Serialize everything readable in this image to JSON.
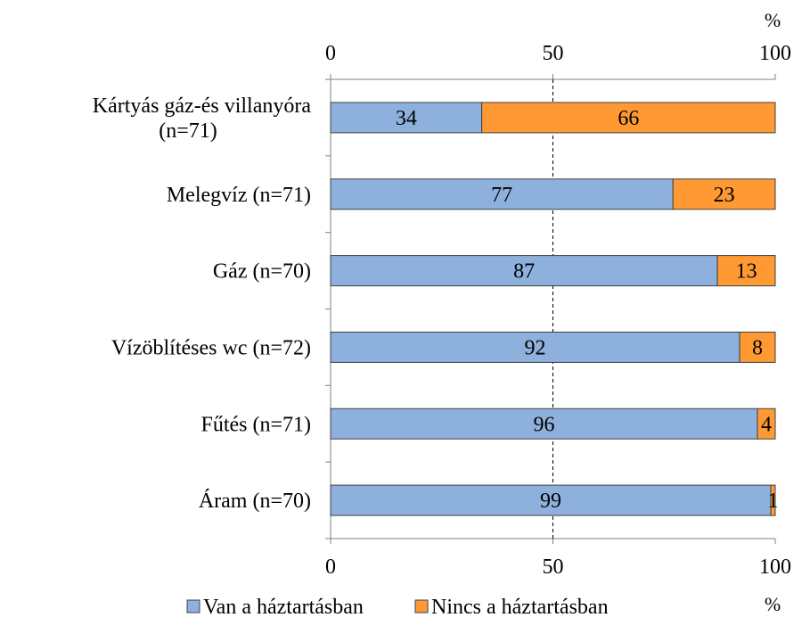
{
  "chart_data": {
    "type": "bar",
    "orientation": "horizontal",
    "stacked": true,
    "categories": [
      [
        "Kártyás gáz-és villanyóra",
        "(n=71)"
      ],
      [
        "Melegvíz (n=71)"
      ],
      [
        "Gáz (n=70)"
      ],
      [
        "Vízöblítéses wc (n=72)"
      ],
      [
        "Fűtés (n=71)"
      ],
      [
        "Áram (n=70)"
      ]
    ],
    "series": [
      {
        "name": "Van a háztartásban",
        "values": [
          34,
          77,
          87,
          92,
          96,
          99
        ],
        "color": "#8EB0DC"
      },
      {
        "name": "Nincs a háztartásban",
        "values": [
          66,
          23,
          13,
          8,
          4,
          1
        ],
        "color": "#FF9933"
      }
    ],
    "xlim": [
      0,
      100
    ],
    "xticks": [
      "0",
      "50",
      "100"
    ],
    "unit": "%",
    "reference_line": 50,
    "grid": false,
    "legend_position": "bottom"
  }
}
